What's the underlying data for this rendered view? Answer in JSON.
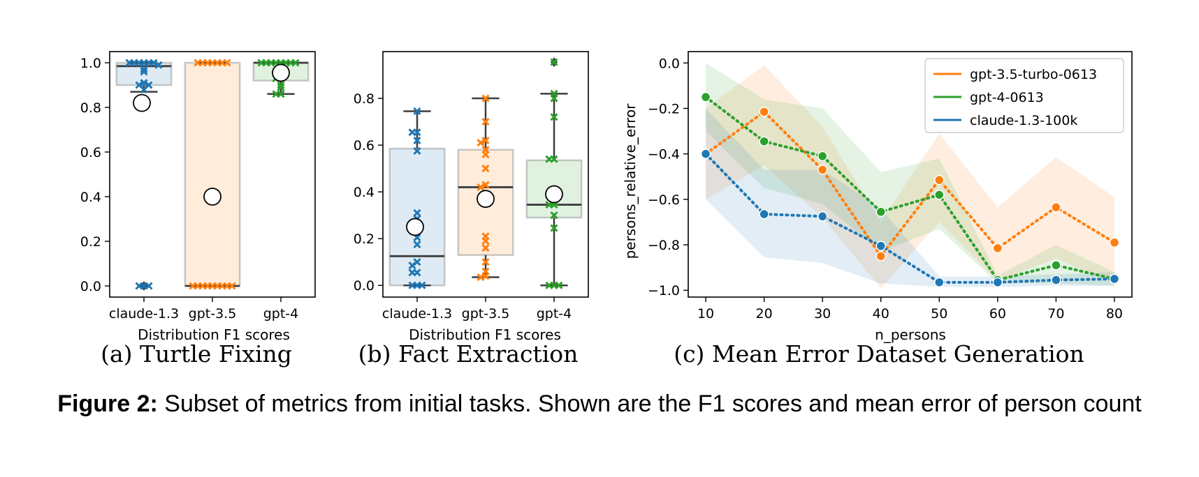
{
  "figure": {
    "label": "Figure 2:",
    "text": "Subset of metrics from initial tasks. Shown are the F1 scores and mean error of person count"
  },
  "panels": [
    {
      "label": "(a) Turtle Fixing"
    },
    {
      "label": "(b) Fact Extraction"
    },
    {
      "label": "(c) Mean Error Dataset Generation"
    }
  ],
  "colors": {
    "blue": "#1f77b4",
    "orange": "#ff7f0e",
    "green": "#2ca02c"
  },
  "chart_data": [
    {
      "type": "box",
      "xlabel": "Distribution F1 scores",
      "ylabel": "",
      "categories": [
        "claude-1.3",
        "gpt-3.5",
        "gpt-4"
      ],
      "ylim": [
        -0.05,
        1.05
      ],
      "yticks": [
        "0.0",
        "0.2",
        "0.4",
        "0.6",
        "0.8",
        "1.0"
      ],
      "boxes": [
        {
          "name": "claude-1.3",
          "q1": 0.9,
          "median": 0.985,
          "q3": 1.0,
          "whisker_low": 0.87,
          "whisker_high": 1.0,
          "mean": 0.82,
          "outliers": [
            0.0
          ],
          "points": [
            1.0,
            1.0,
            1.0,
            1.0,
            1.0,
            1.0,
            0.99,
            0.97,
            0.96,
            0.91,
            0.9,
            0.9,
            0.88,
            0.0,
            0.0,
            0.0
          ]
        },
        {
          "name": "gpt-3.5",
          "q1": 0.0,
          "median": 0.0,
          "q3": 1.0,
          "whisker_low": 0.0,
          "whisker_high": 1.0,
          "mean": 0.4,
          "outliers": [],
          "points": [
            1.0,
            1.0,
            1.0,
            1.0,
            1.0,
            1.0,
            1.0,
            0.0,
            0.0,
            0.0,
            0.0,
            0.0,
            0.0,
            0.0,
            0.0,
            0.0
          ]
        },
        {
          "name": "gpt-4",
          "q1": 0.92,
          "median": 1.0,
          "q3": 1.0,
          "whisker_low": 0.86,
          "whisker_high": 1.0,
          "mean": 0.955,
          "outliers": [],
          "points": [
            1.0,
            1.0,
            1.0,
            1.0,
            1.0,
            1.0,
            1.0,
            1.0,
            0.97,
            0.95,
            0.93,
            0.93,
            0.9,
            0.89,
            0.86,
            0.86
          ]
        }
      ]
    },
    {
      "type": "box",
      "xlabel": "Distribution F1 scores",
      "ylabel": "",
      "categories": [
        "claude-1.3",
        "gpt-3.5",
        "gpt-4"
      ],
      "ylim": [
        -0.05,
        1.0
      ],
      "yticks": [
        "0.0",
        "0.2",
        "0.4",
        "0.6",
        "0.8"
      ],
      "boxes": [
        {
          "name": "claude-1.3",
          "q1": 0.0,
          "median": 0.125,
          "q3": 0.585,
          "whisker_low": 0.0,
          "whisker_high": 0.745,
          "mean": 0.25,
          "outliers": [],
          "points": [
            0.745,
            0.655,
            0.655,
            0.62,
            0.575,
            0.31,
            0.285,
            0.205,
            0.175,
            0.1,
            0.085,
            0.055,
            0.055,
            0.0,
            0.0,
            0.0
          ]
        },
        {
          "name": "gpt-3.5",
          "q1": 0.13,
          "median": 0.42,
          "q3": 0.58,
          "whisker_low": 0.035,
          "whisker_high": 0.8,
          "mean": 0.37,
          "outliers": [],
          "points": [
            0.8,
            0.7,
            0.62,
            0.61,
            0.58,
            0.56,
            0.5,
            0.43,
            0.42,
            0.21,
            0.19,
            0.16,
            0.1,
            0.06,
            0.04,
            0.035
          ]
        },
        {
          "name": "gpt-4",
          "q1": 0.29,
          "median": 0.345,
          "q3": 0.535,
          "whisker_low": 0.0,
          "whisker_high": 0.82,
          "mean": 0.39,
          "outliers": [
            0.955
          ],
          "points": [
            0.955,
            0.82,
            0.8,
            0.72,
            0.54,
            0.54,
            0.39,
            0.385,
            0.355,
            0.345,
            0.345,
            0.3,
            0.245,
            0.0,
            0.0,
            0.0
          ]
        }
      ]
    },
    {
      "type": "line",
      "xlabel": "n_persons",
      "ylabel": "persons_relative_error",
      "x": [
        10,
        20,
        30,
        40,
        50,
        60,
        70,
        80
      ],
      "xlim": [
        7,
        83
      ],
      "ylim": [
        -1.03,
        0.05
      ],
      "yticks": [
        "0.0",
        "−0.2",
        "−0.4",
        "−0.6",
        "−0.8",
        "−1.0"
      ],
      "xticks": [
        "10",
        "20",
        "30",
        "40",
        "50",
        "60",
        "70",
        "80"
      ],
      "legend": "top-right",
      "series": [
        {
          "name": "gpt-3.5-turbo-0613",
          "color": "#ff7f0e",
          "values": [
            -0.4,
            -0.215,
            -0.47,
            -0.85,
            -0.515,
            -0.815,
            -0.635,
            -0.79
          ],
          "lower": [
            -0.6,
            -0.45,
            -0.68,
            -0.99,
            -0.7,
            -0.96,
            -0.86,
            -0.97
          ],
          "upper": [
            -0.2,
            -0.01,
            -0.28,
            -0.7,
            -0.31,
            -0.635,
            -0.415,
            -0.59
          ]
        },
        {
          "name": "gpt-4-0613",
          "color": "#2ca02c",
          "values": [
            -0.15,
            -0.345,
            -0.41,
            -0.655,
            -0.58,
            -0.955,
            -0.89,
            -0.95
          ],
          "lower": [
            -0.3,
            -0.55,
            -0.62,
            -0.83,
            -0.73,
            -0.97,
            -0.97,
            -0.98
          ],
          "upper": [
            0.0,
            -0.16,
            -0.2,
            -0.48,
            -0.42,
            -0.935,
            -0.8,
            -0.92
          ]
        },
        {
          "name": "claude-1.3-100k",
          "color": "#1f77b4",
          "values": [
            -0.4,
            -0.665,
            -0.675,
            -0.805,
            -0.965,
            -0.965,
            -0.955,
            -0.95
          ],
          "lower": [
            -0.6,
            -0.855,
            -0.88,
            -0.97,
            -0.985,
            -0.985,
            -0.98,
            -0.98
          ],
          "upper": [
            -0.2,
            -0.47,
            -0.47,
            -0.64,
            -0.94,
            -0.94,
            -0.93,
            -0.92
          ]
        }
      ]
    }
  ]
}
